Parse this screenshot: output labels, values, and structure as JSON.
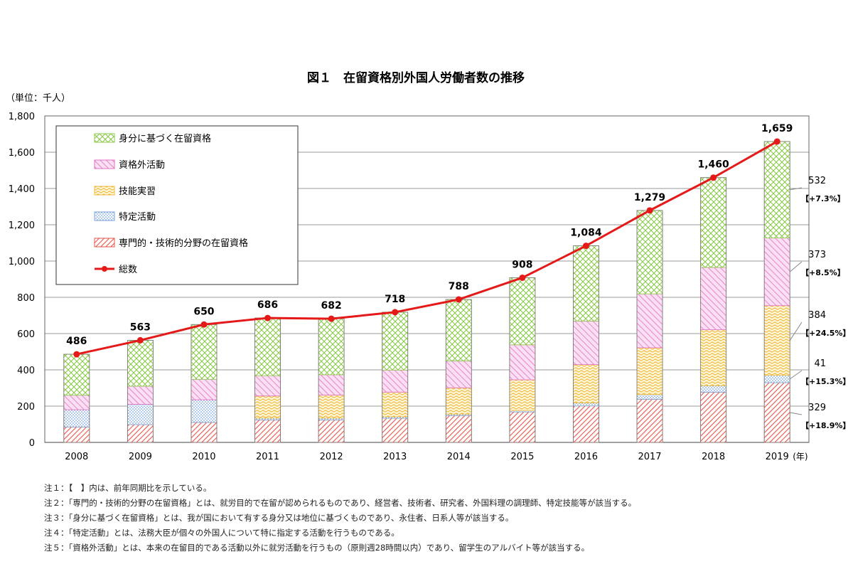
{
  "chart_data": {
    "type": "bar",
    "stacked": true,
    "title": "図１　在留資格別外国人労働者数の推移",
    "unit_label": "（単位：千人）",
    "x_unit_label": "(年)",
    "categories": [
      "2008",
      "2009",
      "2010",
      "2011",
      "2012",
      "2013",
      "2014",
      "2015",
      "2016",
      "2017",
      "2018",
      "2019"
    ],
    "ylim": [
      0,
      1800
    ],
    "yticks": [
      0,
      200,
      400,
      600,
      800,
      1000,
      1200,
      1400,
      1600,
      1800
    ],
    "ytick_labels": [
      "0",
      "200",
      "400",
      "600",
      "800",
      "1,000",
      "1,200",
      "1,400",
      "1,600",
      "1,800"
    ],
    "grid": true,
    "legend_position": "top-left (inside plot)",
    "series": [
      {
        "name": "専門的・技術的分野の在留資格",
        "key": "senmon",
        "color": "#e8564a",
        "values": [
          85,
          98,
          110,
          124,
          124,
          133,
          148,
          168,
          201,
          238,
          277,
          329
        ]
      },
      {
        "name": "特定活動",
        "key": "tokutei",
        "color": "#7aa6d8",
        "values": [
          95,
          112,
          125,
          10,
          10,
          8,
          8,
          8,
          17,
          26,
          36,
          41
        ]
      },
      {
        "name": "技能実習",
        "key": "gino",
        "color": "#f0b93c",
        "values": [
          0,
          0,
          0,
          122,
          127,
          136,
          145,
          169,
          211,
          258,
          308,
          384
        ]
      },
      {
        "name": "資格外活動",
        "key": "shikakugai",
        "color": "#e070c0",
        "values": [
          80,
          100,
          113,
          112,
          112,
          122,
          148,
          193,
          240,
          297,
          344,
          373
        ]
      },
      {
        "name": "身分に基づく在留資格",
        "key": "mibun",
        "color": "#8cc84a",
        "values": [
          226,
          253,
          302,
          318,
          309,
          319,
          339,
          370,
          415,
          460,
          495,
          532
        ]
      }
    ],
    "line_series": {
      "name": "総数",
      "color": "#e61919",
      "values": [
        486,
        563,
        650,
        686,
        682,
        718,
        788,
        908,
        1084,
        1279,
        1460,
        1659
      ]
    },
    "total_labels": [
      "486",
      "563",
      "650",
      "686",
      "682",
      "718",
      "788",
      "908",
      "1,084",
      "1,279",
      "1,460",
      "1,659"
    ],
    "annotations_2019": [
      {
        "value": "532",
        "change": "【+7.3%】",
        "series": "mibun"
      },
      {
        "value": "373",
        "change": "【+8.5%】",
        "series": "shikakugai"
      },
      {
        "value": "384",
        "change": "【+24.5%】",
        "series": "gino"
      },
      {
        "value": "41",
        "change": "【+15.3%】",
        "series": "tokutei"
      },
      {
        "value": "329",
        "change": "【+18.9%】",
        "series": "senmon"
      }
    ]
  },
  "notes": [
    "注１：【　】内は、前年同期比を示している。",
    "注２：「専門的・技術的分野の在留資格」とは、就労目的で在留が認められるものであり、経営者、技術者、研究者、外国料理の調理師、特定技能等が該当する。",
    "注３：「身分に基づく在留資格」とは、我が国において有する身分又は地位に基づくものであり、永住者、日系人等が該当する。",
    "注４：「特定活動」とは、法務大臣が個々の外国人について特に指定する活動を行うものである。",
    "注５：「資格外活動」とは、本来の在留目的である活動以外に就労活動を行うもの（原則週28時間以内）であり、留学生のアルバイト等が該当する。"
  ]
}
